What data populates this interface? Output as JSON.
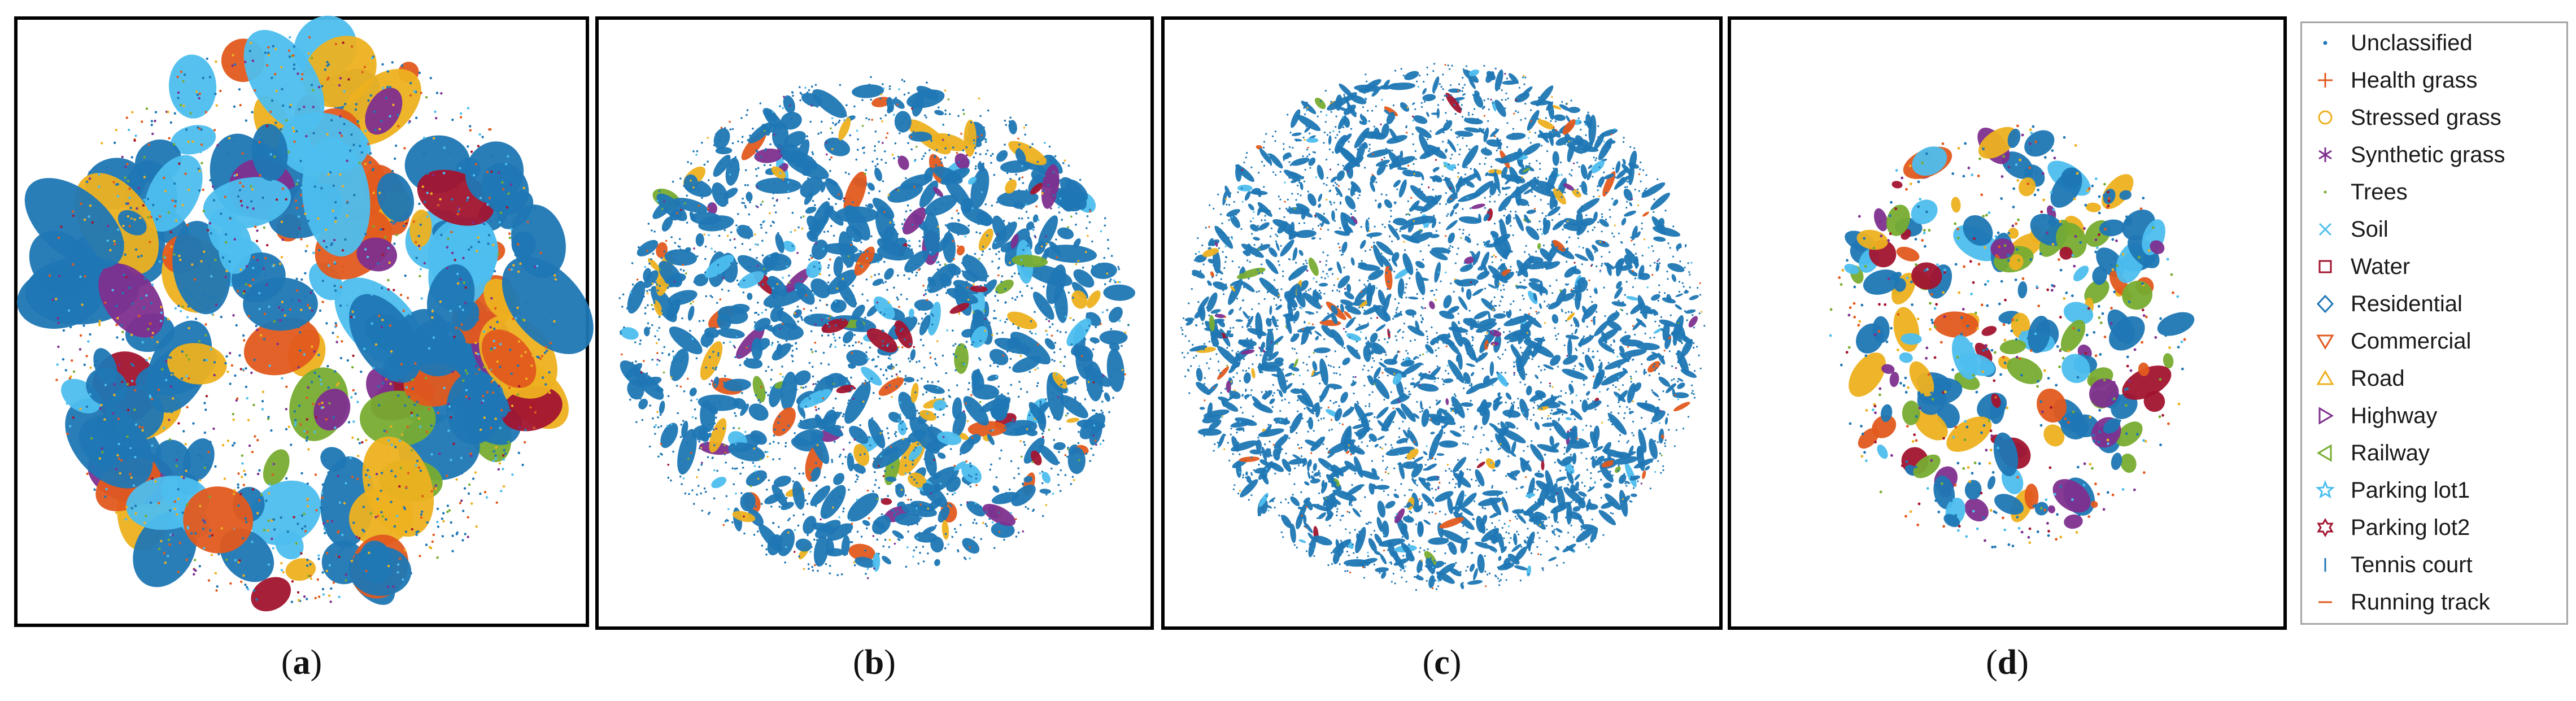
{
  "colors": {
    "blue": "#1f77b4",
    "orange": "#e15a1e",
    "yellow": "#edb120",
    "purple": "#7e2f8e",
    "green": "#77ac30",
    "lightblue": "#4dbeee",
    "red": "#a2142f",
    "frame": "#000000"
  },
  "panels": [
    {
      "caption_open": "(",
      "caption_letter": "a",
      "caption_close": ")"
    },
    {
      "caption_open": "(",
      "caption_letter": "b",
      "caption_close": ")"
    },
    {
      "caption_open": "(",
      "caption_letter": "c",
      "caption_close": ")"
    },
    {
      "caption_open": "(",
      "caption_letter": "d",
      "caption_close": ")"
    }
  ],
  "legend": [
    {
      "label": "Unclassified",
      "marker": "dot",
      "color": "#1f77b4"
    },
    {
      "label": "Health grass",
      "marker": "plus",
      "color": "#e15a1e"
    },
    {
      "label": "Stressed grass",
      "marker": "circle",
      "color": "#edb120"
    },
    {
      "label": "Synthetic grass",
      "marker": "asterisk",
      "color": "#7e2f8e"
    },
    {
      "label": "Trees",
      "marker": "point",
      "color": "#77ac30"
    },
    {
      "label": "Soil",
      "marker": "x",
      "color": "#4dbeee"
    },
    {
      "label": "Water",
      "marker": "square",
      "color": "#a2142f"
    },
    {
      "label": "Residential",
      "marker": "diamond",
      "color": "#1f77b4"
    },
    {
      "label": "Commercial",
      "marker": "triangle-down",
      "color": "#e15a1e"
    },
    {
      "label": "Road",
      "marker": "triangle-up",
      "color": "#edb120"
    },
    {
      "label": "Highway",
      "marker": "triangle-right",
      "color": "#7e2f8e"
    },
    {
      "label": "Railway",
      "marker": "triangle-left",
      "color": "#77ac30"
    },
    {
      "label": "Parking lot1",
      "marker": "pentagram",
      "color": "#4dbeee"
    },
    {
      "label": "Parking lot2",
      "marker": "hexagram",
      "color": "#a2142f"
    },
    {
      "label": "Tennis court",
      "marker": "vline",
      "color": "#1f77b4"
    },
    {
      "label": "Running track",
      "marker": "hline",
      "color": "#e15a1e"
    }
  ],
  "chart_data": [
    {
      "type": "scatter",
      "panel": "(a)",
      "description_marks": "dense t-SNE embedding, large clustered blobs",
      "series": [
        {
          "name": "Unclassified"
        },
        {
          "name": "Health grass"
        },
        {
          "name": "Stressed grass"
        },
        {
          "name": "Synthetic grass"
        },
        {
          "name": "Trees"
        },
        {
          "name": "Soil"
        },
        {
          "name": "Water"
        },
        {
          "name": "Residential"
        },
        {
          "name": "Commercial"
        },
        {
          "name": "Road"
        },
        {
          "name": "Highway"
        },
        {
          "name": "Railway"
        },
        {
          "name": "Parking lot1"
        },
        {
          "name": "Parking lot2"
        },
        {
          "name": "Tennis court"
        },
        {
          "name": "Running track"
        }
      ],
      "grid": false
    },
    {
      "type": "scatter",
      "panel": "(b)",
      "grid": false
    },
    {
      "type": "scatter",
      "panel": "(c)",
      "grid": false
    },
    {
      "type": "scatter",
      "panel": "(d)",
      "grid": false
    }
  ]
}
